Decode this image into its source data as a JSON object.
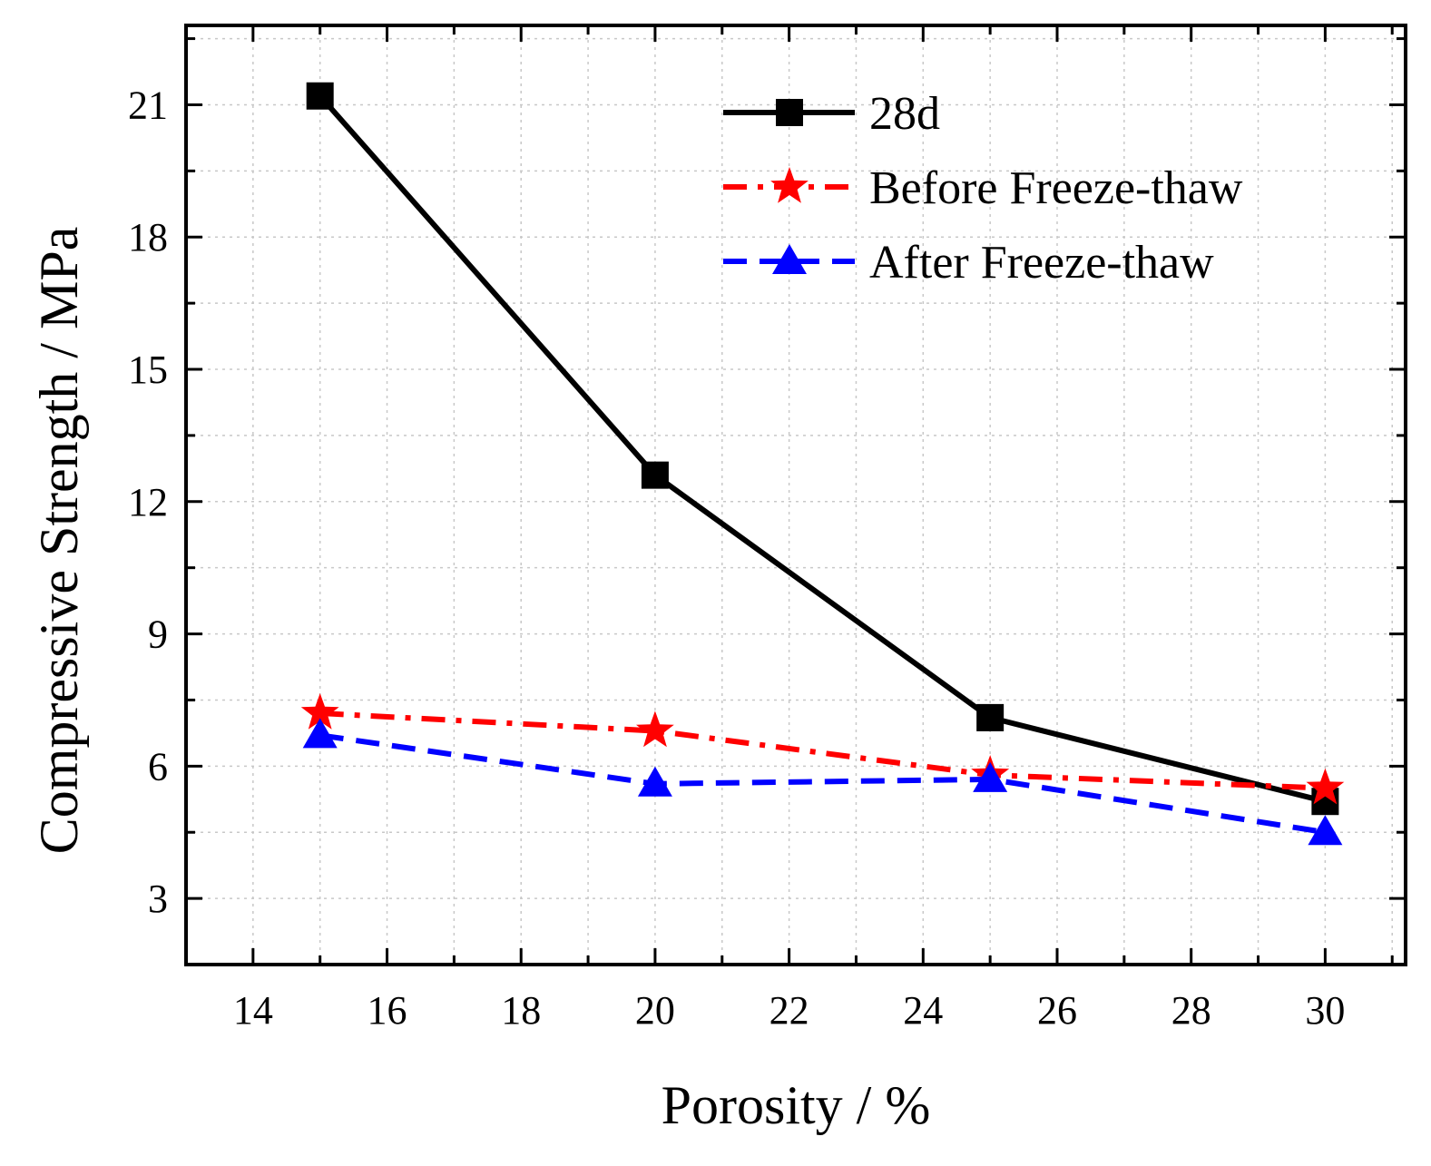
{
  "chart_data": {
    "type": "line",
    "title": "",
    "xlabel": "Porosity / %",
    "ylabel": "Compressive Strength / MPa",
    "xlim": [
      13,
      31.2
    ],
    "ylim": [
      1.5,
      22.8
    ],
    "xticks": [
      14,
      16,
      18,
      20,
      22,
      24,
      26,
      28,
      30
    ],
    "yticks": [
      3,
      6,
      9,
      12,
      15,
      18,
      21
    ],
    "grid": true,
    "legend_position": "top-right",
    "series": [
      {
        "name": "28d",
        "color": "#000000",
        "marker": "square",
        "line_style": "solid",
        "x": [
          15,
          20,
          25,
          30
        ],
        "y": [
          21.2,
          12.6,
          7.1,
          5.2
        ]
      },
      {
        "name": "Before Freeze-thaw",
        "color": "#ff0000",
        "marker": "star",
        "line_style": "dash-dot",
        "x": [
          15,
          20,
          25,
          30
        ],
        "y": [
          7.2,
          6.8,
          5.8,
          5.5
        ]
      },
      {
        "name": "After Freeze-thaw",
        "color": "#0000ff",
        "marker": "triangle",
        "line_style": "dash",
        "x": [
          15,
          20,
          25,
          30
        ],
        "y": [
          6.7,
          5.6,
          5.7,
          4.5
        ]
      }
    ]
  }
}
